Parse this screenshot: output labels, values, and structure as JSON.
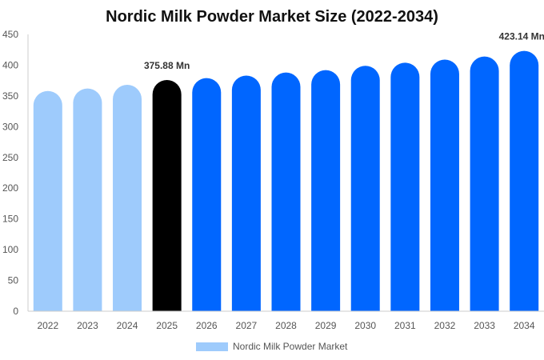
{
  "chart_data": {
    "type": "bar",
    "title": "Nordic Milk Powder Market Size (2022-2034)",
    "xlabel": "",
    "ylabel": "",
    "categories": [
      "2022",
      "2023",
      "2024",
      "2025",
      "2026",
      "2027",
      "2028",
      "2029",
      "2030",
      "2031",
      "2032",
      "2033",
      "2034"
    ],
    "series": [
      {
        "name": "Nordic Milk Powder Market",
        "values": [
          358,
          362,
          368,
          375.88,
          379,
          383,
          388,
          392,
          399,
          404,
          409,
          414,
          423.14
        ]
      }
    ],
    "ylim": [
      0,
      450
    ],
    "yticks": [
      0,
      50,
      100,
      150,
      200,
      250,
      300,
      350,
      400,
      450
    ],
    "grid": false,
    "legend_position": "bottom",
    "data_labels": [
      {
        "category": "2025",
        "text": "375.88 Mn"
      },
      {
        "category": "2034",
        "text": "423.14 Mn"
      }
    ],
    "colors": {
      "historical": "#9ecbfc",
      "current": "#000000",
      "forecast": "#0066ff",
      "axis": "#cccccc"
    },
    "period_colors": [
      "historical",
      "historical",
      "historical",
      "current",
      "forecast",
      "forecast",
      "forecast",
      "forecast",
      "forecast",
      "forecast",
      "forecast",
      "forecast",
      "forecast"
    ]
  }
}
